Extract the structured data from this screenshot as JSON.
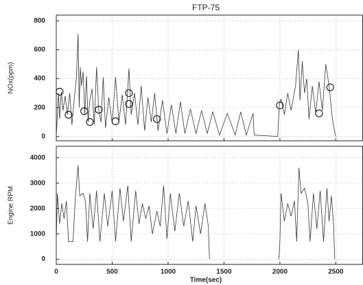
{
  "chart_data": [
    {
      "type": "line",
      "title": "FTP-75",
      "y_label": "NOx(ppm)",
      "color": "#333333",
      "grid": true,
      "xtick_labels": false,
      "xlim": [
        0,
        2740
      ],
      "ylim": [
        -30,
        840
      ],
      "xticks": [
        0,
        500,
        1000,
        1500,
        2000,
        2500
      ],
      "yticks": [
        0,
        200,
        400,
        600,
        800
      ],
      "x": [
        0,
        20,
        30,
        45,
        60,
        80,
        100,
        120,
        140,
        160,
        180,
        195,
        205,
        215,
        225,
        240,
        255,
        270,
        285,
        300,
        320,
        340,
        360,
        380,
        400,
        420,
        440,
        470,
        500,
        530,
        560,
        590,
        620,
        650,
        670,
        700,
        730,
        760,
        790,
        820,
        850,
        880,
        910,
        950,
        990,
        1030,
        1070,
        1110,
        1150,
        1200,
        1250,
        1300,
        1350,
        1400,
        1460,
        1530,
        1600,
        1650,
        1700,
        1760,
        1770,
        1980,
        1995,
        2010,
        2040,
        2070,
        2100,
        2140,
        2165,
        2180,
        2200,
        2220,
        2240,
        2260,
        2290,
        2320,
        2350,
        2380,
        2410,
        2440,
        2470,
        2490,
        2500
      ],
      "values": [
        0,
        300,
        120,
        310,
        180,
        280,
        150,
        300,
        80,
        250,
        400,
        710,
        200,
        480,
        350,
        450,
        150,
        420,
        100,
        250,
        330,
        80,
        480,
        180,
        100,
        410,
        60,
        270,
        90,
        410,
        100,
        290,
        80,
        470,
        150,
        300,
        80,
        350,
        40,
        270,
        100,
        300,
        40,
        250,
        20,
        220,
        20,
        240,
        20,
        190,
        20,
        180,
        20,
        170,
        10,
        160,
        10,
        170,
        10,
        160,
        10,
        0,
        220,
        260,
        150,
        300,
        180,
        350,
        600,
        250,
        520,
        300,
        400,
        120,
        350,
        160,
        380,
        180,
        500,
        350,
        120,
        30,
        0
      ],
      "markers": {
        "x": [
          30,
          110,
          250,
          300,
          380,
          530,
          650,
          650,
          900,
          2000,
          2350,
          2450
        ],
        "values": [
          310,
          150,
          175,
          100,
          185,
          105,
          300,
          225,
          120,
          215,
          160,
          340
        ]
      }
    },
    {
      "type": "line",
      "y_label": "Engine RPM",
      "x_label": "Time(sec)",
      "color": "#333333",
      "grid": true,
      "xtick_labels": true,
      "xlim": [
        0,
        2740
      ],
      "ylim": [
        -200,
        4450
      ],
      "xticks": [
        0,
        500,
        1000,
        1500,
        2000,
        2500
      ],
      "yticks": [
        0,
        1000,
        2000,
        3000,
        4000
      ],
      "x": [
        0,
        10,
        30,
        50,
        70,
        90,
        110,
        150,
        170,
        195,
        210,
        240,
        260,
        280,
        300,
        330,
        360,
        390,
        430,
        460,
        500,
        530,
        570,
        600,
        640,
        670,
        710,
        740,
        770,
        800,
        830,
        860,
        900,
        930,
        960,
        990,
        1020,
        1060,
        1100,
        1140,
        1180,
        1220,
        1250,
        1290,
        1330,
        1360,
        1370,
        1500,
        1990,
        2000,
        2010,
        2040,
        2070,
        2100,
        2130,
        2150,
        2170,
        2190,
        2220,
        2250,
        2270,
        2300,
        2330,
        2360,
        2390,
        2420,
        2440,
        2460,
        2480,
        2490
      ],
      "values": [
        700,
        2600,
        1400,
        2200,
        1600,
        2300,
        700,
        700,
        2400,
        3700,
        2500,
        2600,
        2300,
        700,
        2600,
        1200,
        2700,
        700,
        2600,
        1300,
        2700,
        700,
        2800,
        1500,
        2900,
        700,
        2700,
        1400,
        2200,
        1600,
        2100,
        1000,
        1900,
        1300,
        2900,
        800,
        2600,
        1100,
        2600,
        1300,
        2300,
        700,
        2100,
        1000,
        2200,
        1300,
        0,
        null,
        0,
        700,
        2600,
        1500,
        2200,
        1700,
        2300,
        700,
        3600,
        2600,
        2800,
        2200,
        700,
        2600,
        1200,
        2700,
        700,
        2800,
        1500,
        2500,
        1400,
        0
      ]
    }
  ]
}
